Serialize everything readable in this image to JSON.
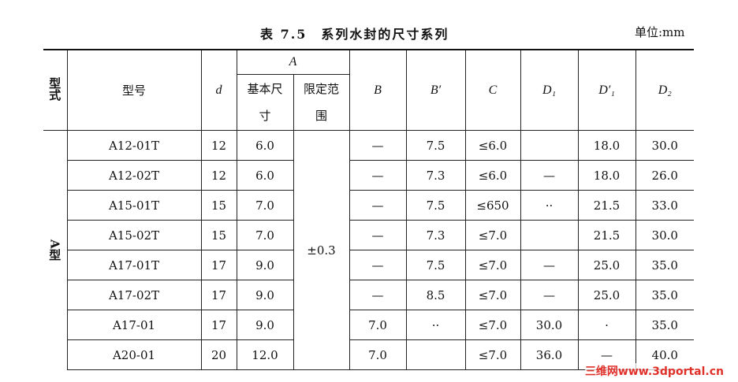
{
  "title": "表 7.5　系列水封的尺寸系列",
  "unit": "单位:mm",
  "headers": {
    "type_col": "型式",
    "model": "型号",
    "d": "d",
    "A": "A",
    "A_basic": "基本尺寸",
    "A_range": "限定范围",
    "B": "B",
    "B_prime": "B′",
    "C": "C",
    "D1": "D₁",
    "D1_prime": "D′₁",
    "D2": "D₂"
  },
  "group_label": "A型",
  "tolerance": "±0.3",
  "rows": [
    [
      "A12-01T",
      "12",
      "6.0",
      "—",
      "7.5",
      "≤6.0",
      "",
      "18.0",
      "30.0"
    ],
    [
      "A12-02T",
      "12",
      "6.0",
      "—",
      "7.3",
      "≤6.0",
      "—",
      "18.0",
      "26.0"
    ],
    [
      "A15-01T",
      "15",
      "7.0",
      "—",
      "7.5",
      "≤650",
      "··",
      "21.5",
      "33.0"
    ],
    [
      "A15-02T",
      "15",
      "7.0",
      "—",
      "7.3",
      "≤7.0",
      "",
      "21.5",
      "30.0"
    ],
    [
      "A17-01T",
      "17",
      "9.0",
      "—",
      "7.5",
      "≤7.0",
      "—",
      "25.0",
      "35.0"
    ],
    [
      "A17-02T",
      "17",
      "9.0",
      "—",
      "8.5",
      "≤7.0",
      "—",
      "25.0",
      "35.0"
    ],
    [
      "A17-01",
      "17",
      "9.0",
      "7.0",
      "··",
      "≤7.0",
      "30.0",
      "·",
      "35.0"
    ],
    [
      "A20-01",
      "20",
      "12.0",
      "7.0",
      "",
      "≤7.0",
      "36.0",
      "—",
      "40.0"
    ]
  ],
  "watermark": "三维网www.3dportal.cn"
}
